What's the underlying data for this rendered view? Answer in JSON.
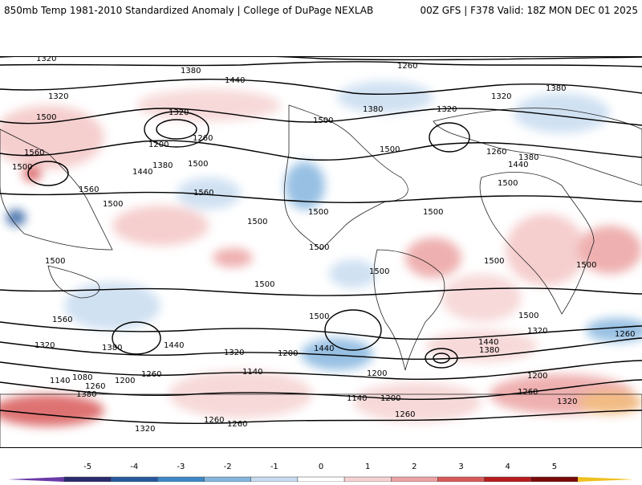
{
  "header": {
    "title_left": "850mb Temp 1981-2010 Standardized Anomaly | College of DuPage NEXLAB",
    "title_right": "00Z GFS | F378 Valid: 18Z MON DEC 01 2025"
  },
  "contour_labels": [
    "1320",
    "1380",
    "1440",
    "1260",
    "1380",
    "1320",
    "1500",
    "1560",
    "1500",
    "1500",
    "1320",
    "1200",
    "1260",
    "1440",
    "1380",
    "1500",
    "1500",
    "1380",
    "1500",
    "1320",
    "1320",
    "1260",
    "1380",
    "1440",
    "1500",
    "1500",
    "1500",
    "1500",
    "1500",
    "1500",
    "1500",
    "1500",
    "1560",
    "1560",
    "1560",
    "1500",
    "1500",
    "1440",
    "1380",
    "1320",
    "1200",
    "1440",
    "1320",
    "1200",
    "1260",
    "1140",
    "1200",
    "1080",
    "1140",
    "1260",
    "1380",
    "1260",
    "1140",
    "1200",
    "1500",
    "1320",
    "1260",
    "1440",
    "1380",
    "1260",
    "1200",
    "1260",
    "1320",
    "1500",
    "1320",
    "1260"
  ],
  "colorbar": {
    "ticks": [
      "-5",
      "-4",
      "-3",
      "-2",
      "-1",
      "0",
      "1",
      "2",
      "3",
      "4",
      "5"
    ],
    "colors": [
      "#2a2a6e",
      "#27589e",
      "#3d87c7",
      "#86b6df",
      "#c8dcf0",
      "#ffffff",
      "#f6d3d3",
      "#eca3a3",
      "#d95a5a",
      "#b81c1c",
      "#7a0a0a"
    ],
    "low_color": "#6a3aa8",
    "high_color": "#f0c020"
  }
}
